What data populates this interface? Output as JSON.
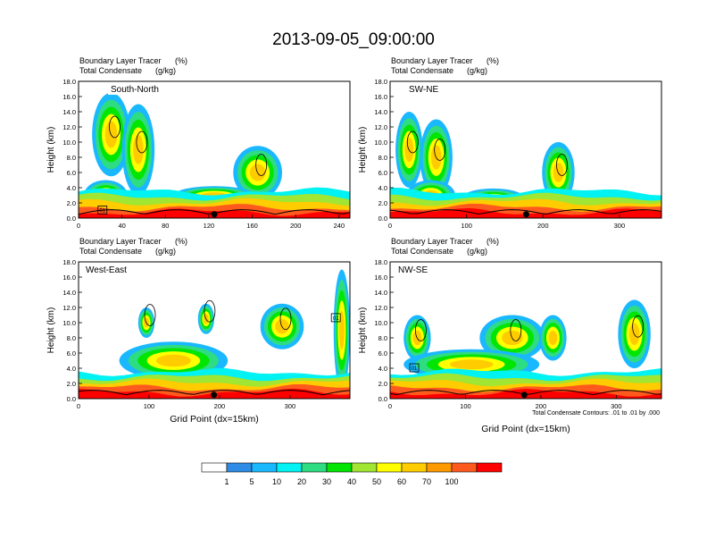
{
  "main_title": "2013-09-05_09:00:00",
  "colorbar": {
    "labels": [
      "1",
      "5",
      "10",
      "20",
      "30",
      "40",
      "50",
      "60",
      "70",
      "100"
    ],
    "colors": [
      "#ffffff",
      "#2e8ce6",
      "#19b8ff",
      "#00f2f2",
      "#2edc82",
      "#00e600",
      "#a0e632",
      "#ffff00",
      "#ffcc00",
      "#ff9900",
      "#ff5a1e",
      "#ff0000"
    ]
  },
  "footnote": "Total Condensate Contours: .01 to .01 by .000",
  "chart_data": [
    {
      "type": "heatmap",
      "title": "South-North",
      "subtitle_line1": "Boundary Layer Tracer",
      "subtitle_unit1": "(%)",
      "subtitle_line2": "Total Condensate",
      "subtitle_unit2": "(g/kg)",
      "ylabel": "Height (km)",
      "xlabel": "",
      "xlim": [
        0,
        250
      ],
      "ylim": [
        0,
        18
      ],
      "xticks": [
        0,
        40,
        80,
        120,
        160,
        200,
        240
      ],
      "yticks": [
        "0.0",
        "2.0",
        "4.0",
        "6.0",
        "8.0",
        "10.0",
        "12.0",
        "14.0",
        "16.0",
        "18.0"
      ],
      "marker_x": 125,
      "box_label": "01",
      "box_x": 22
    },
    {
      "type": "heatmap",
      "title": "SW-NE",
      "subtitle_line1": "Boundary Layer Tracer",
      "subtitle_unit1": "(%)",
      "subtitle_line2": "Total Condensate",
      "subtitle_unit2": "(g/kg)",
      "ylabel": "Height (km)",
      "xlabel": "",
      "xlim": [
        0,
        355
      ],
      "ylim": [
        0,
        18
      ],
      "xticks": [
        0,
        100,
        200,
        300
      ],
      "yticks": [
        "0.0",
        "2.0",
        "4.0",
        "6.0",
        "8.0",
        "10.0",
        "12.0",
        "14.0",
        "16.0",
        "18.0"
      ],
      "marker_x": 178,
      "box_label": "",
      "box_x": null
    },
    {
      "type": "heatmap",
      "title": "West-East",
      "subtitle_line1": "Boundary Layer Tracer",
      "subtitle_unit1": "(%)",
      "subtitle_line2": "Total Condensate",
      "subtitle_unit2": "(g/kg)",
      "ylabel": "Height (km)",
      "xlabel": "Grid Point (dx=15km)",
      "xlim": [
        0,
        385
      ],
      "ylim": [
        0,
        18
      ],
      "xticks": [
        0,
        100,
        200,
        300
      ],
      "yticks": [
        "0.0",
        "2.0",
        "4.0",
        "6.0",
        "8.0",
        "10.0",
        "12.0",
        "14.0",
        "16.0",
        "18.0"
      ],
      "marker_x": 192,
      "box_label": "01",
      "box_x": 365
    },
    {
      "type": "heatmap",
      "title": "NW-SE",
      "subtitle_line1": "Boundary Layer Tracer",
      "subtitle_unit1": "(%)",
      "subtitle_line2": "Total Condensate",
      "subtitle_unit2": "(g/kg)",
      "ylabel": "Height (km)",
      "xlabel": "Grid Point (dx=15km)",
      "xlim": [
        0,
        360
      ],
      "ylim": [
        0,
        18
      ],
      "xticks": [
        0,
        100,
        200,
        300
      ],
      "yticks": [
        "0.0",
        "2.0",
        "4.0",
        "6.0",
        "8.0",
        "10.0",
        "12.0",
        "14.0",
        "16.0",
        "18.0"
      ],
      "marker_x": 178,
      "box_label": "01",
      "box_x": 32
    }
  ]
}
